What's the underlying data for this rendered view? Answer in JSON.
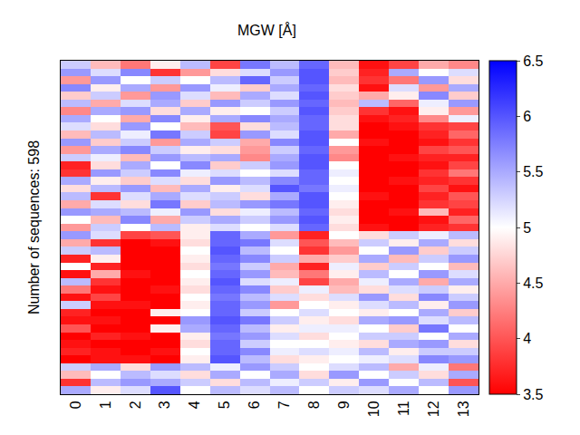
{
  "chart_data": {
    "type": "heatmap",
    "title": "MGW [Å]",
    "y_label": "Number of sequences: 598",
    "categories": [
      "0",
      "1",
      "2",
      "3",
      "4",
      "5",
      "6",
      "7",
      "8",
      "9",
      "10",
      "11",
      "12",
      "13"
    ],
    "tick_labels": "x",
    "colors": [
      "#ff0000",
      "#ffffff",
      "#0000ff"
    ],
    "colorbar_range": [
      3.5,
      6.5
    ],
    "colorbar_ticks": [
      3.5,
      4,
      4.5,
      5,
      5.5,
      6,
      6.5
    ],
    "cells": [
      [
        5.3,
        4.6,
        4.2,
        4.9,
        5.4,
        3.9,
        5.8,
        5.4,
        5.9,
        4.6,
        3.6,
        3.9,
        4.5,
        4.3
      ],
      [
        5.6,
        5.2,
        5.7,
        3.8,
        4.4,
        4.8,
        5.2,
        5.6,
        6.0,
        4.7,
        3.7,
        5.5,
        5.0,
        5.2
      ],
      [
        4.4,
        5.6,
        5.0,
        5.3,
        5.0,
        5.4,
        5.9,
        5.3,
        6.0,
        4.6,
        3.8,
        4.2,
        5.6,
        4.8
      ],
      [
        5.7,
        4.9,
        5.5,
        4.4,
        5.6,
        5.1,
        4.7,
        5.5,
        5.9,
        4.8,
        3.6,
        5.2,
        4.4,
        5.5
      ],
      [
        4.7,
        5.3,
        4.4,
        5.6,
        5.2,
        4.6,
        5.5,
        5.2,
        6.0,
        4.7,
        4.5,
        4.9,
        5.7,
        4.7
      ],
      [
        5.4,
        4.5,
        5.2,
        5.5,
        4.7,
        5.6,
        5.3,
        5.6,
        5.9,
        4.6,
        5.4,
        4.1,
        5.1,
        5.6
      ],
      [
        4.3,
        5.5,
        5.6,
        4.8,
        5.5,
        4.9,
        5.0,
        5.3,
        6.0,
        4.7,
        3.8,
        3.6,
        4.9,
        4.4
      ],
      [
        5.5,
        5.0,
        4.5,
        5.7,
        4.9,
        5.5,
        5.7,
        5.5,
        5.9,
        4.8,
        3.6,
        3.7,
        4.3,
        5.1
      ],
      [
        5.2,
        4.8,
        5.6,
        5.0,
        4.6,
        4.0,
        4.8,
        5.4,
        5.9,
        4.8,
        3.5,
        3.6,
        3.8,
        3.9
      ],
      [
        4.6,
        5.4,
        5.1,
        5.8,
        5.3,
        3.9,
        5.6,
        5.2,
        6.0,
        4.5,
        3.5,
        3.5,
        3.7,
        4.1
      ],
      [
        5.6,
        4.7,
        5.3,
        4.4,
        5.5,
        5.3,
        4.5,
        5.7,
        6.0,
        5.0,
        3.6,
        3.5,
        3.6,
        3.8
      ],
      [
        4.4,
        5.5,
        5.7,
        5.3,
        4.9,
        4.8,
        4.4,
        5.3,
        5.9,
        4.4,
        3.5,
        3.5,
        3.9,
        4.0
      ],
      [
        5.3,
        5.1,
        4.6,
        5.6,
        5.4,
        5.5,
        4.3,
        5.5,
        6.0,
        4.3,
        3.5,
        3.6,
        3.7,
        3.7
      ],
      [
        3.7,
        4.8,
        5.5,
        5.0,
        5.7,
        4.7,
        5.3,
        5.6,
        6.0,
        5.0,
        3.5,
        3.5,
        3.6,
        3.9
      ],
      [
        3.8,
        5.6,
        5.3,
        5.7,
        5.1,
        5.2,
        5.0,
        5.2,
        5.9,
        5.1,
        3.5,
        3.5,
        3.8,
        4.2
      ],
      [
        5.5,
        4.9,
        4.7,
        5.2,
        4.8,
        5.6,
        5.4,
        5.7,
        5.9,
        5.0,
        3.5,
        3.6,
        3.7,
        3.8
      ],
      [
        4.8,
        5.4,
        5.6,
        4.6,
        5.5,
        4.9,
        5.2,
        6.0,
        5.8,
        5.1,
        3.5,
        3.5,
        3.9,
        3.6
      ],
      [
        5.4,
        3.8,
        5.2,
        5.5,
        5.2,
        5.3,
        4.8,
        5.5,
        6.0,
        5.0,
        3.6,
        3.5,
        3.7,
        4.0
      ],
      [
        4.5,
        5.2,
        4.8,
        5.8,
        4.7,
        5.4,
        5.6,
        5.8,
        6.0,
        4.9,
        3.5,
        3.5,
        3.8,
        3.9
      ],
      [
        5.6,
        5.5,
        5.4,
        5.1,
        5.6,
        4.8,
        5.1,
        5.4,
        5.9,
        4.8,
        3.5,
        3.6,
        4.6,
        3.7
      ],
      [
        5.0,
        4.6,
        5.7,
        4.5,
        5.3,
        5.5,
        5.3,
        5.6,
        6.0,
        4.9,
        3.5,
        3.5,
        3.6,
        4.1
      ],
      [
        4.4,
        5.3,
        5.0,
        5.4,
        4.9,
        5.2,
        5.0,
        5.2,
        5.9,
        4.8,
        3.6,
        3.5,
        3.7,
        3.8
      ],
      [
        5.6,
        5.2,
        3.9,
        4.0,
        4.9,
        5.9,
        5.5,
        4.4,
        3.7,
        5.0,
        4.8,
        5.3,
        5.1,
        5.4
      ],
      [
        4.5,
        3.8,
        3.5,
        3.6,
        4.8,
        5.9,
        5.8,
        5.2,
        4.0,
        4.6,
        5.3,
        4.9,
        5.5,
        4.8
      ],
      [
        5.3,
        5.4,
        3.5,
        3.5,
        5.0,
        6.0,
        5.4,
        5.0,
        3.8,
        4.4,
        5.0,
        5.6,
        4.7,
        5.3
      ],
      [
        3.7,
        4.9,
        3.5,
        3.5,
        4.9,
        5.9,
        5.7,
        5.3,
        4.5,
        4.7,
        5.5,
        4.6,
        5.3,
        5.6
      ],
      [
        5.0,
        3.7,
        3.5,
        3.5,
        4.8,
        5.8,
        5.3,
        4.5,
        3.7,
        5.1,
        4.7,
        5.3,
        5.0,
        4.6
      ],
      [
        3.6,
        4.5,
        3.6,
        3.5,
        5.0,
        5.9,
        5.6,
        4.6,
        4.2,
        4.9,
        5.4,
        5.0,
        5.6,
        5.2
      ],
      [
        5.4,
        3.8,
        3.5,
        3.5,
        4.9,
        6.0,
        5.2,
        5.1,
        3.9,
        4.5,
        5.1,
        5.5,
        4.5,
        5.5
      ],
      [
        4.2,
        3.6,
        3.5,
        3.6,
        4.8,
        5.9,
        5.7,
        4.7,
        5.1,
        4.6,
        4.8,
        5.2,
        5.3,
        4.9
      ],
      [
        3.6,
        3.9,
        3.5,
        3.5,
        5.0,
        5.8,
        5.4,
        5.2,
        4.8,
        5.2,
        5.6,
        4.8,
        5.7,
        5.3
      ],
      [
        5.3,
        3.6,
        3.6,
        3.5,
        4.9,
        5.9,
        5.6,
        4.4,
        5.0,
        4.9,
        5.2,
        5.4,
        4.9,
        5.6
      ],
      [
        3.7,
        3.5,
        3.5,
        4.9,
        5.0,
        5.9,
        5.3,
        5.0,
        5.2,
        5.0,
        4.9,
        5.0,
        5.5,
        4.7
      ],
      [
        3.6,
        3.6,
        3.5,
        3.5,
        5.6,
        6.0,
        5.8,
        5.3,
        4.9,
        4.8,
        5.5,
        5.6,
        5.2,
        5.4
      ],
      [
        4.0,
        3.5,
        3.5,
        4.9,
        5.5,
        5.9,
        5.4,
        4.9,
        5.1,
        5.1,
        5.0,
        4.7,
        5.8,
        5.0
      ],
      [
        3.5,
        3.7,
        3.6,
        3.5,
        4.9,
        5.8,
        5.6,
        5.2,
        4.8,
        5.0,
        5.3,
        5.3,
        5.0,
        5.5
      ],
      [
        3.6,
        3.5,
        3.5,
        3.5,
        4.8,
        5.9,
        5.3,
        5.0,
        5.0,
        4.9,
        4.8,
        5.5,
        5.6,
        4.8
      ],
      [
        3.7,
        3.6,
        3.5,
        3.6,
        5.0,
        5.9,
        5.7,
        5.1,
        5.2,
        5.1,
        5.4,
        4.9,
        5.3,
        5.3
      ],
      [
        3.5,
        3.6,
        3.6,
        3.5,
        4.9,
        6.0,
        5.4,
        4.8,
        4.9,
        5.0,
        5.1,
        5.2,
        5.7,
        5.6
      ],
      [
        5.3,
        5.5,
        4.8,
        5.6,
        5.4,
        5.1,
        5.6,
        5.3,
        5.0,
        5.2,
        5.4,
        4.5,
        5.1,
        4.2
      ],
      [
        4.6,
        5.0,
        5.4,
        5.2,
        4.8,
        5.5,
        5.0,
        5.5,
        4.8,
        5.6,
        5.0,
        5.3,
        4.8,
        5.5
      ],
      [
        3.8,
        5.4,
        5.6,
        5.5,
        5.3,
        4.8,
        5.4,
        5.1,
        5.3,
        4.9,
        5.6,
        5.0,
        5.4,
        4.0
      ],
      [
        5.5,
        4.9,
        5.2,
        6.0,
        5.0,
        5.4,
        5.2,
        5.4,
        5.0,
        5.3,
        5.2,
        5.5,
        5.0,
        5.6
      ]
    ]
  }
}
